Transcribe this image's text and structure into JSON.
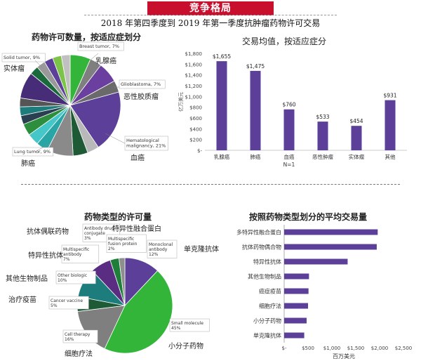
{
  "header": {
    "banner": "竞争格局",
    "subtitle": "2018 年第四季度到 2019 年第一季度抗肿瘤药物许可交易"
  },
  "chart_data": [
    {
      "id": "pie_indication",
      "type": "pie",
      "title": "药物许可数量，按适应症划分",
      "slices": [
        {
          "label": "Breast tumor, 7%",
          "label_cn": "乳腺癌",
          "value": 7
        },
        {
          "label": "Glioblastoma, 7%",
          "label_cn": "恶性胶质瘤",
          "value": 7
        },
        {
          "label": "Hematological malignancy, 21%",
          "label_cn": "血癌",
          "value": 21
        },
        {
          "label": "Lung tumor, 9%",
          "label_cn": "肺癌",
          "value": 9
        },
        {
          "label": "Solid tumor, 9%",
          "label_cn": "实体瘤",
          "value": 9
        }
      ],
      "others_value": 47
    },
    {
      "id": "bar_indication",
      "type": "bar",
      "title": "交易均值，按适应症分",
      "ylabel": "亿万美元",
      "ylim": [
        0,
        1800
      ],
      "yticks": [
        "$-",
        "$200",
        "$400",
        "$600",
        "$800",
        "$1,000",
        "$1,200",
        "$1,400",
        "$1,600",
        "$1,800"
      ],
      "categories": [
        "乳腺癌",
        "肺癌",
        "血癌",
        "恶性肿瘤",
        "实体瘤",
        "其他"
      ],
      "values": [
        1655,
        1475,
        760,
        533,
        454,
        931
      ],
      "value_labels": [
        "$1,655",
        "$1,475",
        "$760",
        "$533",
        "$454",
        "$931"
      ],
      "annotation": "N=1"
    },
    {
      "id": "pie_modality",
      "type": "pie",
      "title": "药物类型的许可量",
      "slices": [
        {
          "label": "Monoclonal antibody 12%",
          "label_cn": "单克隆抗体",
          "value": 12
        },
        {
          "label": "Small molecule 45%",
          "label_cn": "小分子药物",
          "value": 45
        },
        {
          "label": "Cell therapy 16%",
          "label_cn": "细胞疗法",
          "value": 16
        },
        {
          "label": "Cancer vaccine 5%",
          "label_cn": "治疗疫苗",
          "value": 5
        },
        {
          "label": "Other biologic 10%",
          "label_cn": "其他生物制品",
          "value": 10
        },
        {
          "label": "Multispecific antibody 7%",
          "label_cn": "特异性抗体",
          "value": 7
        },
        {
          "label": "Antibody drug conjugate 3%",
          "label_cn": "抗体偶联药物",
          "value": 3
        },
        {
          "label": "Multispecific fusion protein 2%",
          "label_cn": "特异性融合蛋白",
          "value": 2
        }
      ]
    },
    {
      "id": "hbar_modality",
      "type": "bar",
      "orientation": "horizontal",
      "title": "按照药物类型划分的平均交易量",
      "xlabel": "百万美元",
      "xlim": [
        0,
        2500
      ],
      "xticks": [
        "$-",
        "$500",
        "$1,000",
        "$1,500",
        "$2,000",
        "$2,500"
      ],
      "categories": [
        "多特异性融合蛋白",
        "抗体药物偶合物",
        "特异性抗体",
        "其他生物制品",
        "癌症疫苗",
        "细胞疗法",
        "小分子药物",
        "单克隆抗体"
      ],
      "values": [
        1960,
        1940,
        1330,
        520,
        510,
        500,
        470,
        420
      ]
    }
  ],
  "colors": {
    "purple": "#5b3f99",
    "green": "#33b53a",
    "gray": "#7f7f7f",
    "teal": "#1d7d7d",
    "dark_green": "#1d5a35",
    "banner_red": "#c8102e"
  }
}
